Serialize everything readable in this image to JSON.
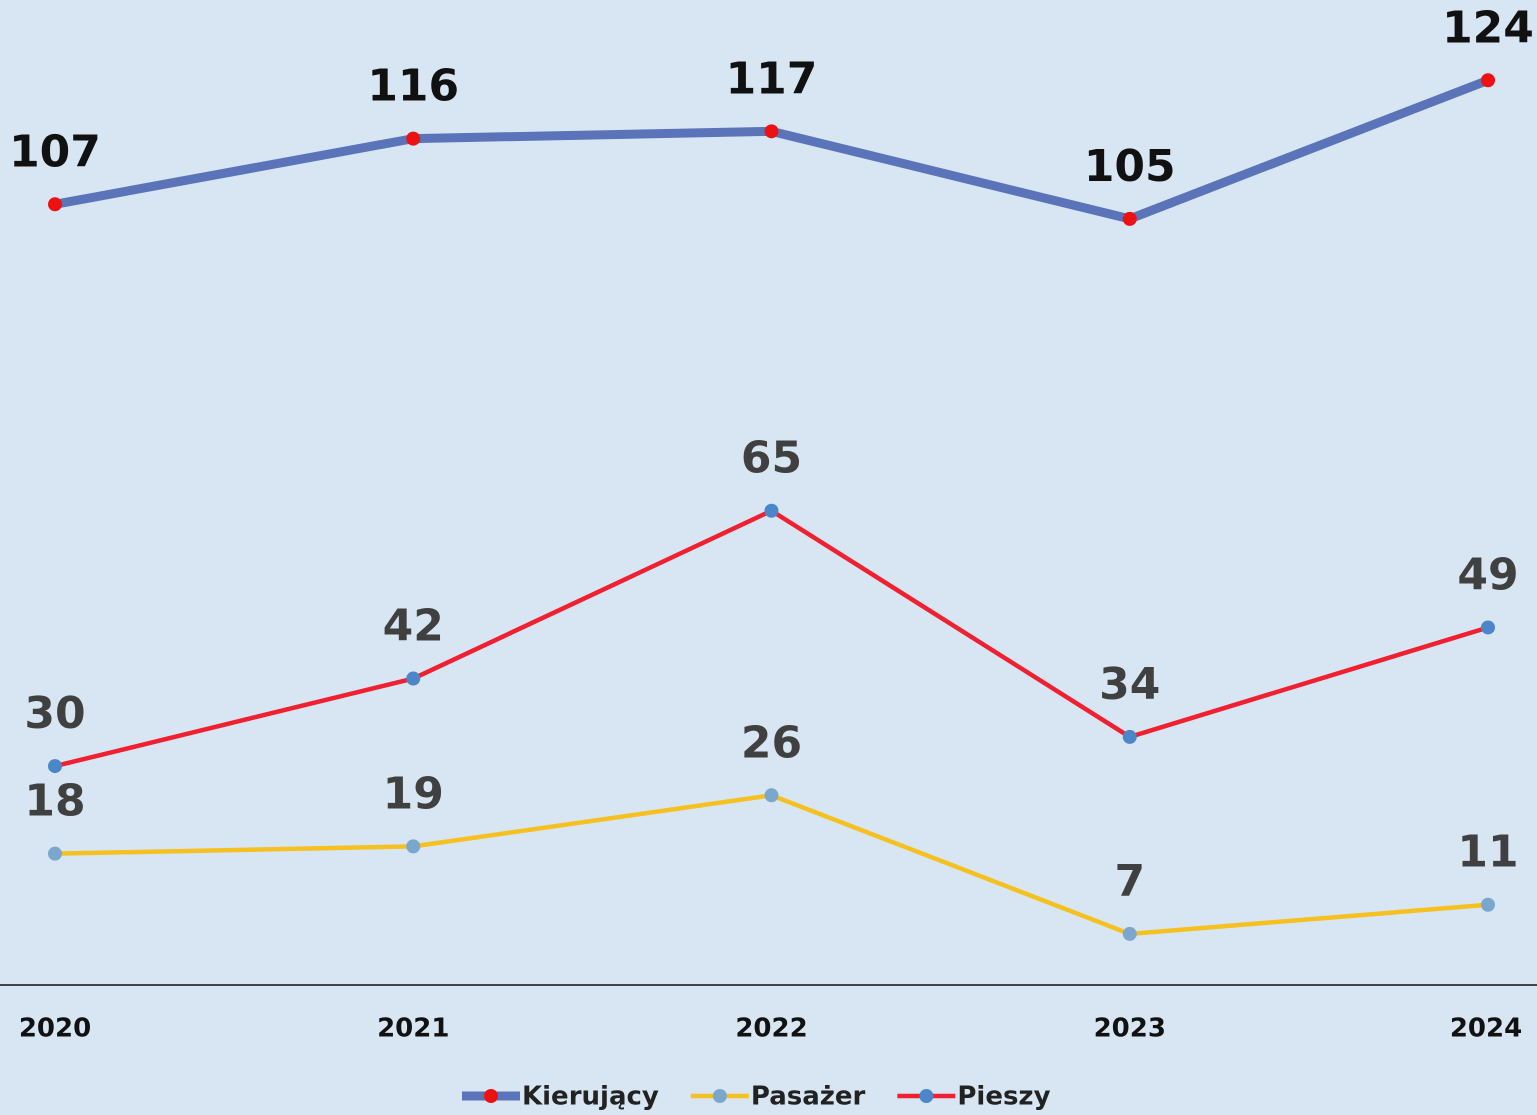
{
  "chart_data": {
    "type": "line",
    "categories": [
      "2020",
      "2021",
      "2022",
      "2023",
      "2024"
    ],
    "series": [
      {
        "name": "Kierujący",
        "color": "#5b73b8",
        "marker_color": "#ee1111",
        "label_color": "#111111",
        "values": [
          107,
          116,
          117,
          105,
          124
        ]
      },
      {
        "name": "Pasażer",
        "color": "#f5c020",
        "marker_color": "#7ba7cc",
        "label_color": "#404040",
        "values": [
          18,
          19,
          26,
          7,
          11
        ]
      },
      {
        "name": "Pieszy",
        "color": "#f02030",
        "marker_color": "#4a86c8",
        "label_color": "#404040",
        "values": [
          30,
          42,
          65,
          34,
          49
        ]
      }
    ],
    "ylim": [
      0,
      135
    ]
  }
}
